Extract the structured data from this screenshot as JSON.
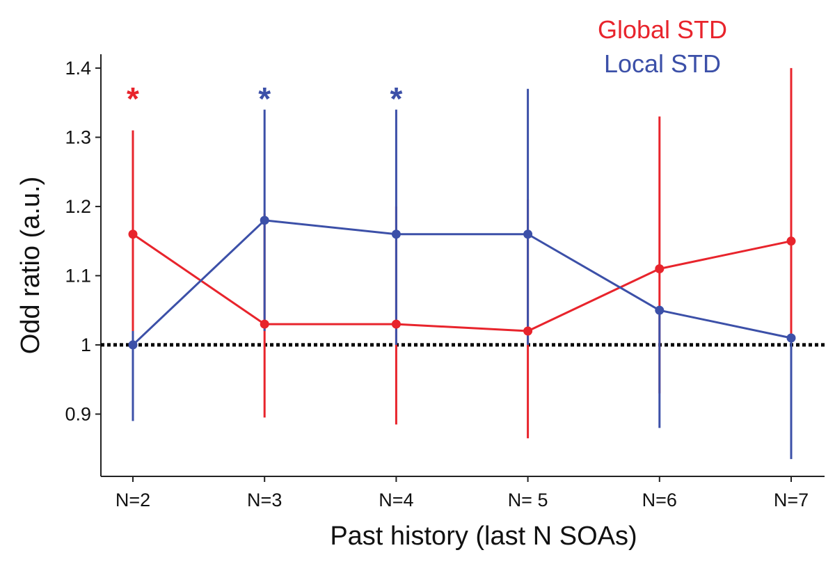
{
  "chart_data": {
    "type": "line",
    "title": "",
    "xlabel": "Past history (last N SOAs)",
    "ylabel": "Odd ratio (a.u.)",
    "categories": [
      "N=2",
      "N=3",
      "N=4",
      "N= 5",
      "N=6",
      "N=7"
    ],
    "ylim": [
      0.81,
      1.42
    ],
    "yticks": [
      0.9,
      1.1,
      1.2,
      1.3,
      1.4
    ],
    "ytick_labels": [
      "0.9",
      "1.1",
      "1.2",
      "1.3",
      "1.4"
    ],
    "reference_line": {
      "value": 1.0,
      "label": "1",
      "style": "dotted",
      "color": "#000000"
    },
    "series": [
      {
        "name": "Global STD",
        "color": "#e8242c",
        "values": [
          1.16,
          1.03,
          1.03,
          1.02,
          1.11,
          1.15
        ],
        "ci_low": [
          1.02,
          0.895,
          0.885,
          0.865,
          0.93,
          0.95
        ],
        "ci_high": [
          1.31,
          1.19,
          1.2,
          1.21,
          1.33,
          1.4
        ]
      },
      {
        "name": "Local STD",
        "color": "#3c50a8",
        "values": [
          1.0,
          1.18,
          1.16,
          1.16,
          1.05,
          1.01
        ],
        "ci_low": [
          0.89,
          1.02,
          1.0,
          1.0,
          0.88,
          0.835
        ],
        "ci_high": [
          1.02,
          1.34,
          1.34,
          1.37,
          1.05,
          1.01
        ]
      }
    ],
    "significance": [
      {
        "category_index": 0,
        "series": "Global STD",
        "label": "*",
        "value": 1.37
      },
      {
        "category_index": 1,
        "series": "Local STD",
        "label": "*",
        "value": 1.37
      },
      {
        "category_index": 2,
        "series": "Local STD",
        "label": "*",
        "value": 1.37
      }
    ],
    "legend": {
      "position": "top-right",
      "entries": [
        "Global STD",
        "Local STD"
      ]
    },
    "grid": false
  }
}
